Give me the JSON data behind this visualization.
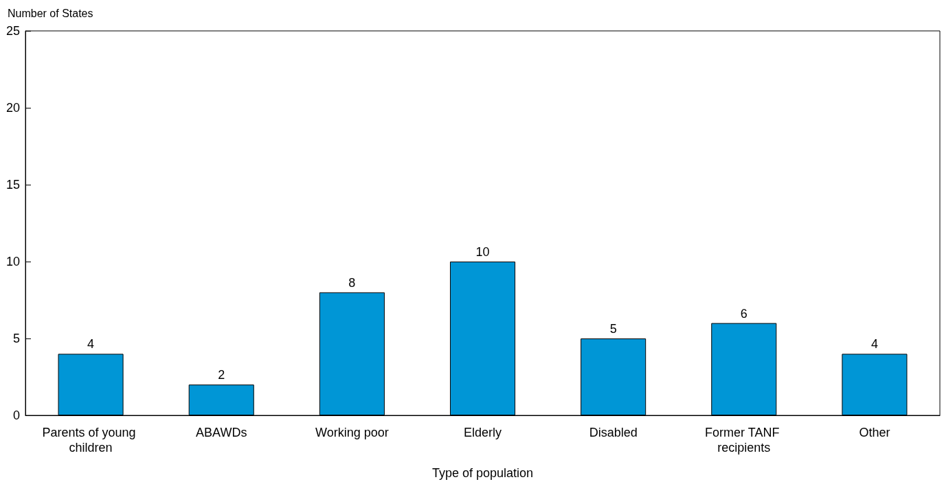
{
  "chart_data": {
    "type": "bar",
    "ylabel": "Number of States",
    "xlabel": "Type of population",
    "categories": [
      "Parents of young children",
      "ABAWDs",
      "Working poor",
      "Elderly",
      "Disabled",
      "Former TANF recipients",
      "Other"
    ],
    "values": [
      4,
      2,
      8,
      10,
      5,
      6,
      4
    ],
    "color": "#0096d6",
    "ylim": [
      0,
      25
    ],
    "yticks": [
      0,
      5,
      10,
      15,
      20,
      25
    ],
    "grid": false,
    "data_labels": true
  }
}
